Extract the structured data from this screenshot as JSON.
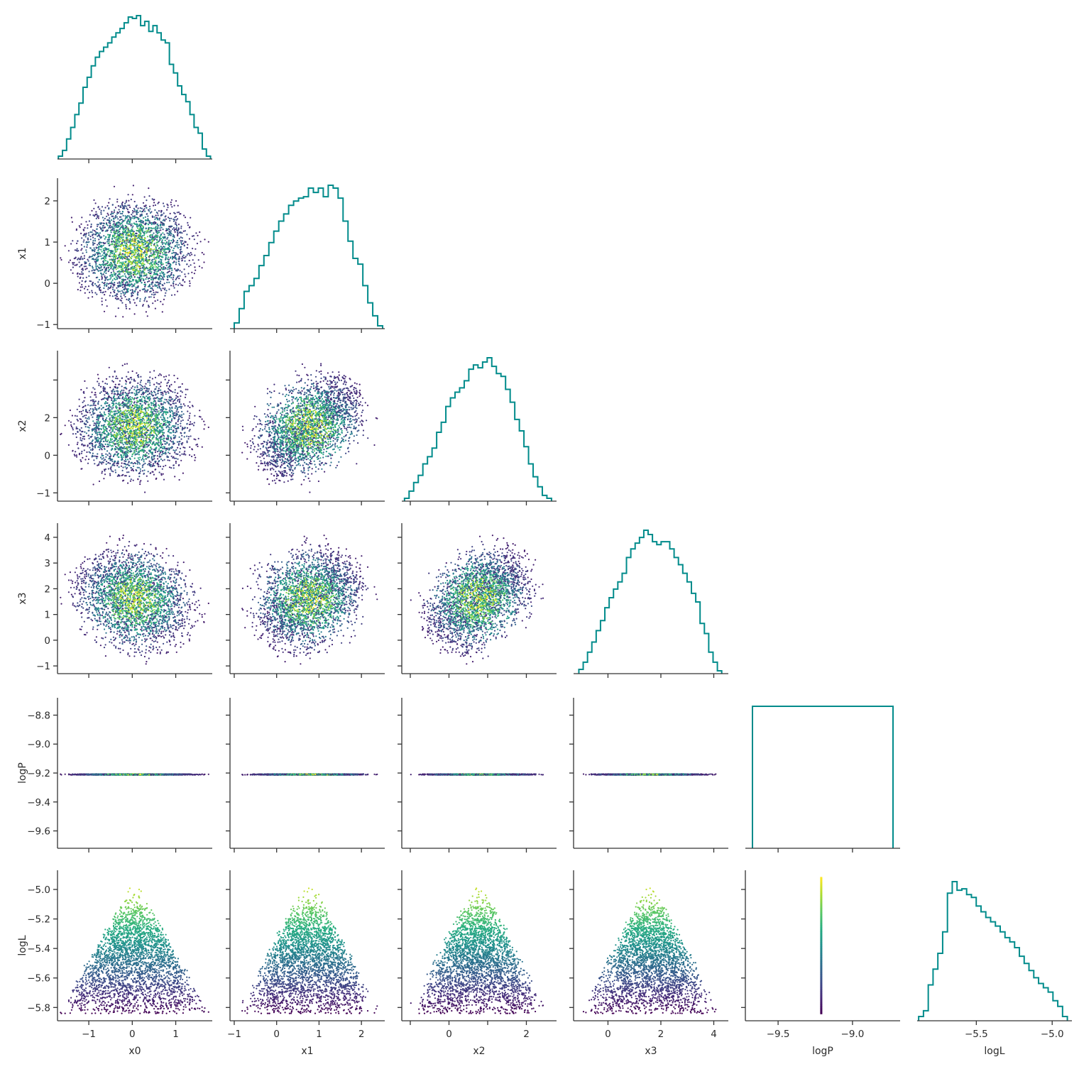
{
  "chart_data": {
    "type": "scatter",
    "title": "",
    "variables": [
      "x0",
      "x1",
      "x2",
      "x3",
      "logP",
      "logL"
    ],
    "axis_labels": {
      "x0": "x0",
      "x1": "x1",
      "x2": "x2",
      "x3": "x3",
      "logP": "logP",
      "logL": "logL"
    },
    "ranges": {
      "x0": [
        -1.72,
        1.84
      ],
      "x1": [
        -1.1,
        2.55
      ],
      "x2": [
        -1.22,
        2.78
      ],
      "x3": [
        -1.3,
        4.55
      ],
      "logP": [
        -9.72,
        -8.68
      ],
      "logL": [
        -5.89,
        -4.87
      ]
    },
    "ticks": {
      "x0": [
        -1,
        0,
        1
      ],
      "x1": [
        -1,
        0,
        1,
        2
      ],
      "x2": [
        -1,
        0,
        1,
        2
      ],
      "x3": [
        -1,
        0,
        1,
        2,
        3,
        4
      ],
      "logP": [
        -9.6,
        -9.4,
        -9.2,
        -9.0,
        -8.8
      ],
      "logL": [
        -5.8,
        -5.6,
        -5.4,
        -5.2,
        -5.0
      ]
    },
    "logP_bottom_ticks": [
      -9.5,
      -9.0
    ],
    "logL_bottom_ticks": [
      -5.5,
      -5.0
    ],
    "tick_labels": {
      "x0": [
        "−1",
        "0",
        "1"
      ],
      "x1": [
        "−1",
        "0",
        "1",
        "2"
      ],
      "x2": [
        "−1",
        "0",
        "2"
      ],
      "x3": [
        "−1",
        "0",
        "1",
        "2",
        "3",
        "4"
      ],
      "x3_bottom": [
        "0",
        "2",
        "4"
      ],
      "x2_bottom": [
        "0",
        "2"
      ],
      "x1_bottom": [
        "−1",
        "0",
        "1",
        "2"
      ],
      "logP": [
        "−9.6",
        "−9.4",
        "−9.2",
        "−9.0",
        "−8.8"
      ],
      "logP_bottom": [
        "−9.5",
        "−9.0"
      ],
      "logL": [
        "−5.8",
        "−5.6",
        "−5.4",
        "−5.2",
        "−5.0"
      ],
      "logL_bottom": [
        "−5.5",
        "−5.0"
      ]
    },
    "distribution": {
      "x0": {
        "mean": 0.05,
        "sd": 0.72,
        "half_width": 1.75
      },
      "x1": {
        "mean": 0.75,
        "sd": 0.72,
        "half_width": 1.75
      },
      "x2": {
        "mean": 0.75,
        "sd": 0.78,
        "half_width": 1.9
      },
      "x3": {
        "mean": 1.6,
        "sd": 1.1,
        "half_width": 2.7
      },
      "logP_value": -9.21,
      "logL_max": -4.92,
      "logL_min": -5.84
    },
    "histograms": {
      "x0": [
        0.02,
        0.06,
        0.14,
        0.22,
        0.31,
        0.39,
        0.5,
        0.57,
        0.65,
        0.71,
        0.75,
        0.78,
        0.81,
        0.85,
        0.88,
        0.91,
        0.95,
        0.99,
        0.98,
        1.0,
        0.93,
        0.96,
        0.89,
        0.93,
        0.88,
        0.83,
        0.81,
        0.66,
        0.6,
        0.51,
        0.45,
        0.4,
        0.31,
        0.22,
        0.18,
        0.07,
        0.02
      ],
      "x1": [
        0.04,
        0.14,
        0.26,
        0.3,
        0.35,
        0.44,
        0.51,
        0.6,
        0.68,
        0.75,
        0.8,
        0.86,
        0.89,
        0.91,
        0.92,
        0.98,
        0.95,
        0.98,
        0.92,
        1.0,
        0.98,
        0.91,
        0.75,
        0.61,
        0.49,
        0.45,
        0.3,
        0.18,
        0.09,
        0.02
      ],
      "x2": [
        0.02,
        0.07,
        0.13,
        0.18,
        0.26,
        0.31,
        0.37,
        0.48,
        0.55,
        0.66,
        0.72,
        0.76,
        0.79,
        0.84,
        0.92,
        0.95,
        0.93,
        0.97,
        1.0,
        0.94,
        0.89,
        0.87,
        0.78,
        0.69,
        0.57,
        0.49,
        0.38,
        0.26,
        0.17,
        0.1,
        0.04,
        0.02
      ],
      "x3": [
        0.03,
        0.08,
        0.15,
        0.22,
        0.3,
        0.37,
        0.46,
        0.53,
        0.59,
        0.64,
        0.7,
        0.81,
        0.87,
        0.91,
        0.95,
        1.0,
        0.97,
        0.92,
        0.9,
        0.92,
        0.92,
        0.87,
        0.81,
        0.76,
        0.7,
        0.64,
        0.56,
        0.5,
        0.35,
        0.28,
        0.15,
        0.08,
        0.02
      ],
      "logL": [
        0.03,
        0.07,
        0.25,
        0.36,
        0.47,
        0.62,
        0.89,
        0.97,
        0.91,
        0.92,
        0.88,
        0.86,
        0.8,
        0.76,
        0.72,
        0.69,
        0.66,
        0.62,
        0.58,
        0.55,
        0.51,
        0.45,
        0.4,
        0.35,
        0.3,
        0.26,
        0.23,
        0.2,
        0.14,
        0.1,
        0.03
      ],
      "logP": [
        1.0
      ]
    },
    "n_points": 2800,
    "point_color": "viridis by density/logL",
    "hist_color": "#008b8b",
    "grid": false,
    "legend": "none"
  }
}
